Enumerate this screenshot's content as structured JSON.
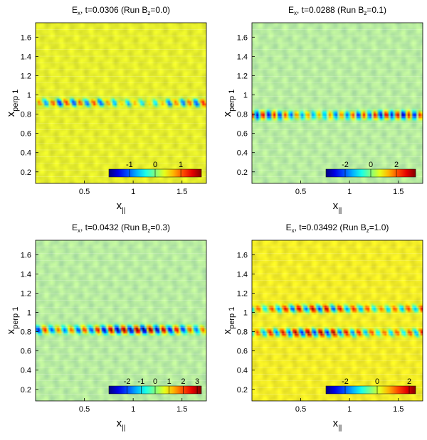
{
  "chart_data": [
    {
      "type": "heatmap",
      "title": {
        "base": "E",
        "sub": "x",
        "mid": ", t=0.0306  (Run B",
        "sub2": "z",
        "end": "=0.0)"
      },
      "xlabel": {
        "base": "x",
        "sub": "||"
      },
      "ylabel": "x",
      "ylabel_sub": "perp 1",
      "xlim": [
        0,
        1.75
      ],
      "ylim": [
        0.08,
        1.75
      ],
      "xticks": [
        0.5,
        1,
        1.5
      ],
      "yticks": [
        0.2,
        0.4,
        0.6,
        0.8,
        1,
        1.2,
        1.4,
        1.6
      ],
      "background": "#e6ee2c",
      "bands": [
        {
          "y": 0.92,
          "amplitude": 1.4,
          "wavelength": 0.14,
          "tilt": 0.35
        }
      ],
      "colorbar": {
        "min": -1.8,
        "max": 1.8,
        "ticks": [
          -1,
          0,
          1
        ]
      }
    },
    {
      "type": "heatmap",
      "title": {
        "base": "E",
        "sub": "x",
        "mid": ", t=0.0288  (Run B",
        "sub2": "z",
        "end": "=0.1)"
      },
      "xlabel": {
        "base": "x",
        "sub": "||"
      },
      "ylabel": "x",
      "ylabel_sub": "perp 1",
      "xlim": [
        0,
        1.75
      ],
      "ylim": [
        0.08,
        1.75
      ],
      "xticks": [
        0.5,
        1,
        1.5
      ],
      "yticks": [
        0.2,
        0.4,
        0.6,
        0.8,
        1,
        1.2,
        1.4,
        1.6
      ],
      "background": "#b8eca0",
      "bands": [
        {
          "y": 0.79,
          "amplitude": 3.2,
          "wavelength": 0.115,
          "tilt": 0.1
        }
      ],
      "colorbar": {
        "min": -3.5,
        "max": 3.5,
        "ticks": [
          -2,
          0,
          2
        ]
      }
    },
    {
      "type": "heatmap",
      "title": {
        "base": "E",
        "sub": "x",
        "mid": ", t=0.0432  (Run B",
        "sub2": "z",
        "end": "=0.3)"
      },
      "xlabel": {
        "base": "x",
        "sub": "||"
      },
      "ylabel": "x",
      "ylabel_sub": "perp 1",
      "xlim": [
        0,
        1.75
      ],
      "ylim": [
        0.08,
        1.75
      ],
      "xticks": [
        0.5,
        1,
        1.5
      ],
      "yticks": [
        0.2,
        0.4,
        0.6,
        0.8,
        1,
        1.2,
        1.4,
        1.6
      ],
      "background": "#b8eca0",
      "bands": [
        {
          "y": 0.82,
          "amplitude": 4.0,
          "wavelength": 0.135,
          "tilt": 0.3
        }
      ],
      "colorbar": {
        "min": -3.3,
        "max": 3.3,
        "ticks": [
          -2,
          -1,
          0,
          1,
          2,
          3
        ]
      }
    },
    {
      "type": "heatmap",
      "title": {
        "base": "E",
        "sub": "x",
        "mid": ", t=0.03492  (Run B",
        "sub2": "z",
        "end": "=1.0)"
      },
      "xlabel": {
        "base": "x",
        "sub": "||"
      },
      "ylabel": "x",
      "ylabel_sub": "perp 1",
      "xlim": [
        0,
        1.75
      ],
      "ylim": [
        0.08,
        1.75
      ],
      "xticks": [
        0.5,
        1,
        1.5
      ],
      "yticks": [
        0.2,
        0.4,
        0.6,
        0.8,
        1,
        1.2,
        1.4,
        1.6
      ],
      "background": "#f2ec26",
      "bands": [
        {
          "y": 0.79,
          "amplitude": 2.6,
          "wavelength": 0.13,
          "tilt": 0.4
        },
        {
          "y": 1.04,
          "amplitude": 2.3,
          "wavelength": 0.14,
          "tilt": 0.4
        }
      ],
      "colorbar": {
        "min": -3.2,
        "max": 2.4,
        "ticks": [
          -2,
          0,
          2
        ]
      }
    }
  ]
}
